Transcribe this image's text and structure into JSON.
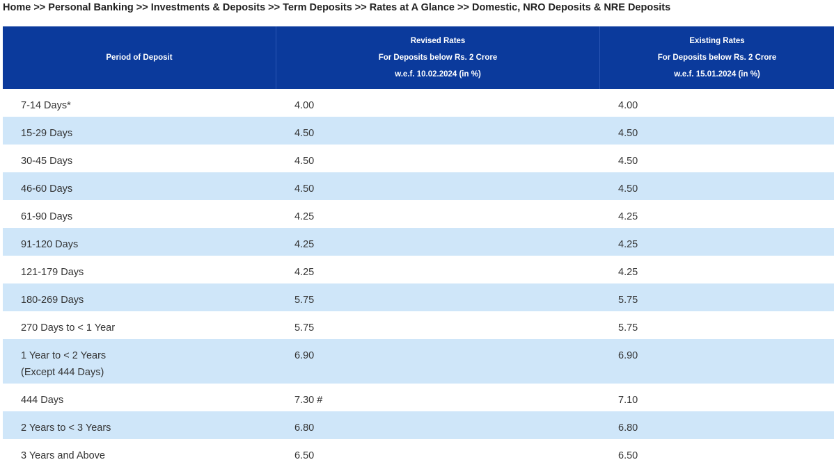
{
  "breadcrumb": "Home >> Personal Banking >> Investments & Deposits >> Term Deposits >> Rates at A Glance >> Domestic, NRO Deposits & NRE Deposits",
  "table": {
    "header": [
      [
        "Period of Deposit"
      ],
      [
        "Revised Rates",
        "For Deposits below Rs. 2 Crore",
        "w.e.f. 10.02.2024 (in %)"
      ],
      [
        "Existing Rates",
        "For Deposits below Rs. 2 Crore",
        "w.e.f. 15.01.2024 (in %)"
      ]
    ],
    "rows": [
      {
        "period": "7-14 Days*",
        "revised": "4.00",
        "existing": "4.00"
      },
      {
        "period": "15-29 Days",
        "revised": "4.50",
        "existing": "4.50"
      },
      {
        "period": "30-45 Days",
        "revised": "4.50",
        "existing": "4.50"
      },
      {
        "period": "46-60 Days",
        "revised": "4.50",
        "existing": "4.50"
      },
      {
        "period": "61-90 Days",
        "revised": "4.25",
        "existing": "4.25"
      },
      {
        "period": "91-120 Days",
        "revised": "4.25",
        "existing": "4.25"
      },
      {
        "period": "121-179 Days",
        "revised": "4.25",
        "existing": "4.25"
      },
      {
        "period": "180-269 Days",
        "revised": "5.75",
        "existing": "5.75"
      },
      {
        "period": "270 Days to < 1 Year",
        "revised": "5.75",
        "existing": "5.75"
      },
      {
        "period": "1 Year to < 2 Years",
        "note": "(Except 444 Days)",
        "revised": "6.90",
        "existing": "6.90"
      },
      {
        "period": "444 Days",
        "revised": "7.30 #",
        "existing": "7.10"
      },
      {
        "period": "2 Years to < 3 Years",
        "revised": "6.80",
        "existing": "6.80"
      },
      {
        "period": "3 Years and Above",
        "revised": "6.50",
        "existing": "6.50"
      }
    ]
  }
}
